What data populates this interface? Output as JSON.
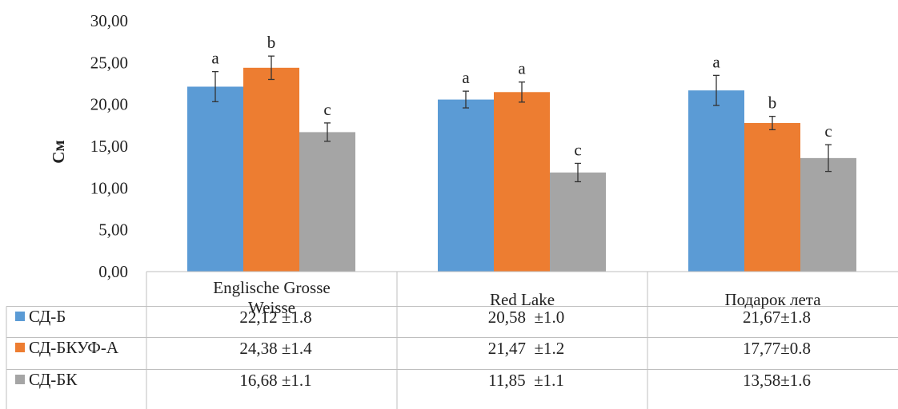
{
  "chart_data": {
    "type": "bar",
    "ylabel": "См",
    "ylim": [
      0,
      30
    ],
    "yticks": [
      "0,00",
      "5,00",
      "10,00",
      "15,00",
      "20,00",
      "25,00",
      "30,00"
    ],
    "categories": [
      "Englische Grosse Weisse",
      "Red Lake",
      "Подарок лета"
    ],
    "category_lines": [
      [
        "Englische Grosse",
        "Weisse"
      ],
      [
        "Red Lake"
      ],
      [
        "Подарок лета"
      ]
    ],
    "series": [
      {
        "name": "СД-Б",
        "color": "#5b9bd5",
        "values": [
          22.12,
          20.58,
          21.67
        ],
        "errors": [
          1.8,
          1.0,
          1.8
        ],
        "letters": [
          "a",
          "a",
          "a"
        ],
        "table": [
          "22,12 ±1.8",
          "20,58  ±1.0",
          "21,67±1.8"
        ]
      },
      {
        "name": "СД-БКУФ-А",
        "color": "#ed7d31",
        "values": [
          24.38,
          21.47,
          17.77
        ],
        "errors": [
          1.4,
          1.2,
          0.8
        ],
        "letters": [
          "b",
          "a",
          "b"
        ],
        "table": [
          "24,38 ±1.4",
          "21,47  ±1.2",
          "17,77±0.8"
        ]
      },
      {
        "name": "СД-БК",
        "color": "#a5a5a5",
        "values": [
          16.68,
          11.85,
          13.58
        ],
        "errors": [
          1.1,
          1.1,
          1.6
        ],
        "letters": [
          "c",
          "c",
          "c"
        ],
        "table": [
          "16,68 ±1.1",
          "11,85  ±1.1",
          "13,58±1.6"
        ]
      }
    ],
    "legend_position": "data-table",
    "grid": false
  }
}
